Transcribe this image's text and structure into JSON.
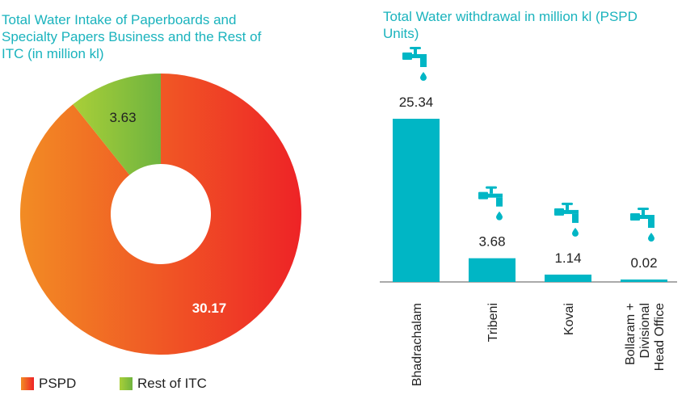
{
  "chart_data": [
    {
      "type": "pie",
      "title": "Total Water Intake of Paperboards and Specialty Papers Business and the Rest of ITC (in million kl)",
      "slices": [
        {
          "name": "PSPD",
          "value": 30.17,
          "label": "30.17",
          "color_from": "#f28c24",
          "color_to": "#ee2326"
        },
        {
          "name": "Rest of ITC",
          "value": 3.63,
          "label": "3.63",
          "color_from": "#a9cf38",
          "color_to": "#6fb43f"
        }
      ],
      "donut": true,
      "legend_position": "bottom-left"
    },
    {
      "type": "bar",
      "title": "Total Water withdrawal in million kl (PSPD Units)",
      "categories": [
        "Bhadrachalam",
        "Tribeni",
        "Kovai",
        "Bollaram + Divisional Head Office"
      ],
      "category_lines": [
        [
          "Bhadrachalam"
        ],
        [
          "Tribeni"
        ],
        [
          "Kovai"
        ],
        [
          "Bollaram +",
          "Divisional",
          "Head Office"
        ]
      ],
      "values": [
        25.34,
        3.68,
        1.14,
        0.02
      ],
      "value_labels": [
        "25.34",
        "3.68",
        "1.14",
        "0.02"
      ],
      "bar_color": "#00b6c5",
      "icon": "water-tap-icon",
      "ylim": [
        0,
        25.34
      ]
    }
  ]
}
